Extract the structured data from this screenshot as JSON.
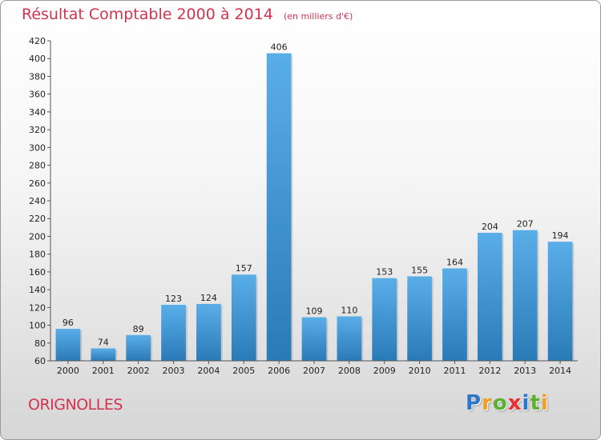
{
  "chart_data": {
    "type": "bar",
    "title": "Résultat Comptable 2000 à 2014",
    "unit_label": "(en milliers d'€)",
    "categories": [
      "2000",
      "2001",
      "2002",
      "2003",
      "2004",
      "2005",
      "2006",
      "2007",
      "2008",
      "2009",
      "2010",
      "2011",
      "2012",
      "2013",
      "2014"
    ],
    "values": [
      96,
      74,
      89,
      123,
      124,
      157,
      406,
      109,
      110,
      153,
      155,
      164,
      204,
      207,
      194
    ],
    "ylim": [
      60,
      420
    ],
    "ytick_step": 20,
    "grid": false,
    "xlabel": "",
    "ylabel": ""
  },
  "footer": {
    "commune": "ORIGNOLLES",
    "logo_letters": [
      "P",
      "r",
      "o",
      "x",
      "i",
      "t",
      "i"
    ]
  },
  "colors": {
    "title": "#d2334f",
    "bar_light": "#5aaee8",
    "bar_dark": "#2a7ab8",
    "logo_letters": [
      "#2f76c8",
      "#f0a020",
      "#5cb030",
      "#e83030",
      "#2f76c8",
      "#5cb030",
      "#f0a020"
    ]
  }
}
